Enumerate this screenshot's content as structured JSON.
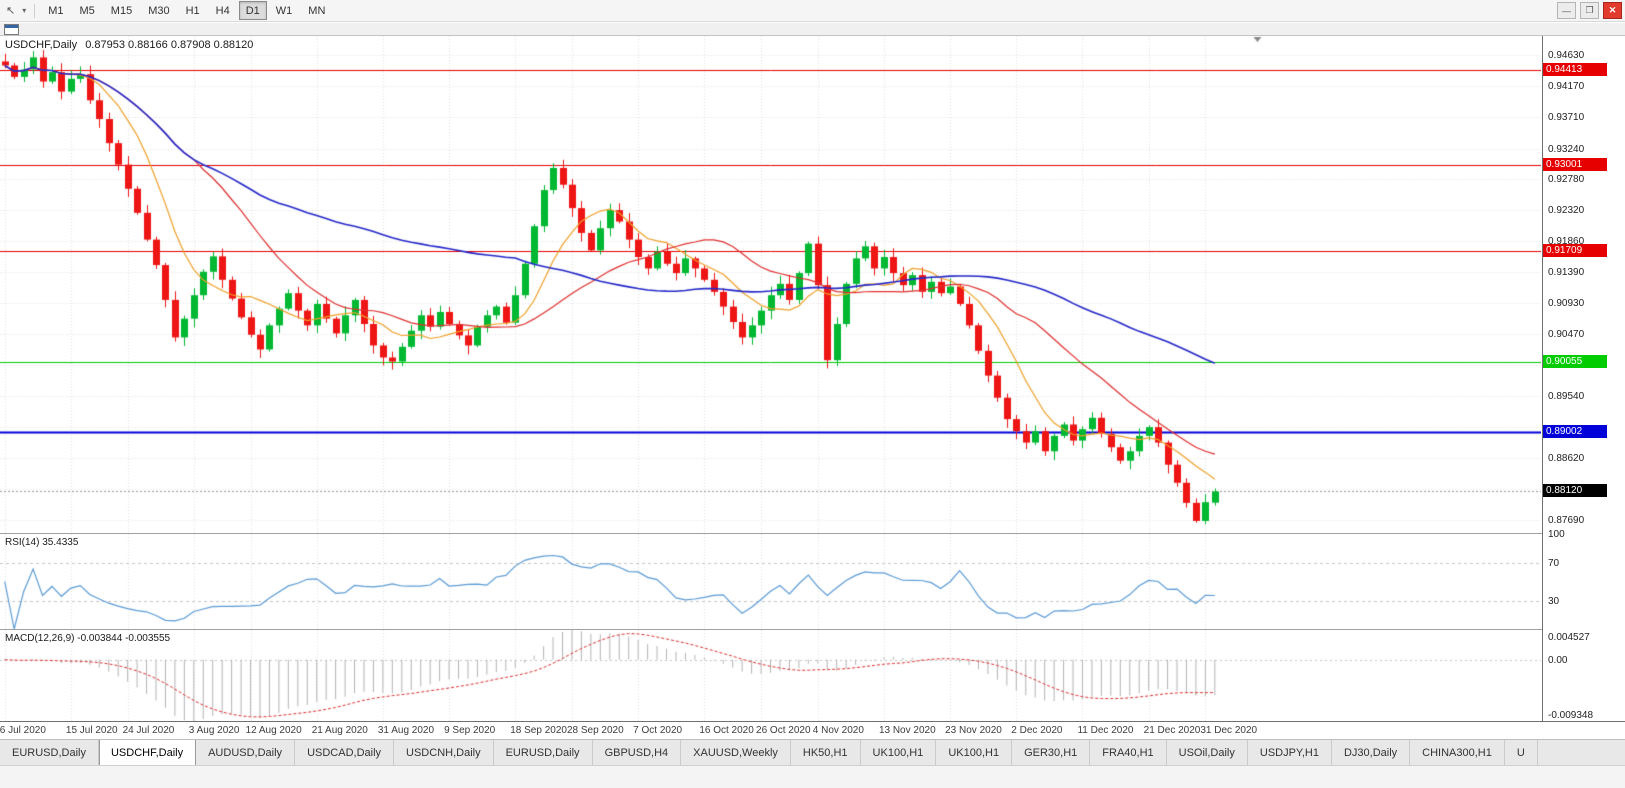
{
  "toolbar": {
    "timeframes": [
      "M1",
      "M5",
      "M15",
      "M30",
      "H1",
      "H4",
      "D1",
      "W1",
      "MN"
    ],
    "active_timeframe": "D1"
  },
  "icons": {
    "pointer": "↖",
    "dropdown_caret": "▾",
    "minimize": "—",
    "restore": "❐",
    "close": "✕"
  },
  "chart": {
    "symbol_title": "USDCHF,Daily",
    "ohlc_text": "0.87953 0.88166 0.87908 0.88120",
    "right_margin_slots": 34,
    "axis_ticks": [
      {
        "value": 0.9463,
        "label": "0.94630"
      },
      {
        "value": 0.9417,
        "label": "0.94170"
      },
      {
        "value": 0.9371,
        "label": "0.93710"
      },
      {
        "value": 0.9324,
        "label": "0.93240"
      },
      {
        "value": 0.9278,
        "label": "0.92780"
      },
      {
        "value": 0.9232,
        "label": "0.92320"
      },
      {
        "value": 0.9186,
        "label": "0.91860"
      },
      {
        "value": 0.9139,
        "label": "0.91390"
      },
      {
        "value": 0.9093,
        "label": "0.90930"
      },
      {
        "value": 0.9047,
        "label": "0.90470"
      },
      {
        "value": 0.8954,
        "label": "0.89540"
      },
      {
        "value": 0.8862,
        "label": "0.88620"
      },
      {
        "value": 0.8769,
        "label": "0.87690"
      }
    ],
    "grid_values": [
      0.9463,
      0.9417,
      0.9371,
      0.9324,
      0.9278,
      0.9232,
      0.9186,
      0.9139,
      0.9093,
      0.9047,
      0.9001,
      0.8954,
      0.8908,
      0.8862,
      0.8815,
      0.8769
    ],
    "hlines": [
      {
        "value": 0.94413,
        "label": "0.94413",
        "color": "#e60000",
        "width": 1
      },
      {
        "value": 0.93001,
        "label": "0.93001",
        "color": "#e60000",
        "width": 1
      },
      {
        "value": 0.91709,
        "label": "0.91709",
        "color": "#e60000",
        "width": 1
      },
      {
        "value": 0.90055,
        "label": "0.90055",
        "color": "#00cc00",
        "width": 1
      },
      {
        "value": 0.89002,
        "label": "0.89002",
        "color": "#0000d8",
        "width": 2
      }
    ],
    "current_price": {
      "value": 0.8812,
      "label": "0.88120",
      "badge_color": "#000000"
    }
  },
  "chart_data": {
    "type": "candlestick",
    "title": "USDCHF,Daily",
    "symbol": "USDCHF",
    "timeframe": "Daily",
    "ylim": [
      0.875,
      0.9492
    ],
    "up_color": "#00b832",
    "down_color": "#ee1515",
    "x_labels": [
      "6 Jul 2020",
      "15 Jul 2020",
      "24 Jul 2020",
      "3 Aug 2020",
      "12 Aug 2020",
      "21 Aug 2020",
      "31 Aug 2020",
      "9 Sep 2020",
      "18 Sep 2020",
      "28 Sep 2020",
      "7 Oct 2020",
      "16 Oct 2020",
      "26 Oct 2020",
      "4 Nov 2020",
      "13 Nov 2020",
      "23 Nov 2020",
      "2 Dec 2020",
      "11 Dec 2020",
      "21 Dec 2020",
      "31 Dec 2020"
    ],
    "x_label_indices": [
      0,
      7,
      13,
      20,
      26,
      33,
      40,
      47,
      54,
      60,
      67,
      74,
      80,
      86,
      93,
      100,
      107,
      114,
      121,
      127
    ],
    "closes": [
      0.9448,
      0.9431,
      0.9442,
      0.946,
      0.9424,
      0.9438,
      0.9409,
      0.9428,
      0.9435,
      0.9396,
      0.9368,
      0.9332,
      0.93,
      0.9264,
      0.9228,
      0.9188,
      0.915,
      0.9098,
      0.9042,
      0.907,
      0.9105,
      0.914,
      0.9163,
      0.9128,
      0.91,
      0.9072,
      0.9046,
      0.9024,
      0.906,
      0.9085,
      0.9108,
      0.9082,
      0.906,
      0.9092,
      0.907,
      0.9048,
      0.9075,
      0.9098,
      0.9062,
      0.903,
      0.9012,
      0.9006,
      0.9028,
      0.9052,
      0.9075,
      0.9058,
      0.908,
      0.9062,
      0.9045,
      0.903,
      0.9058,
      0.9075,
      0.9088,
      0.9064,
      0.9105,
      0.9152,
      0.9208,
      0.9262,
      0.9295,
      0.927,
      0.9235,
      0.9198,
      0.9172,
      0.9205,
      0.9232,
      0.9215,
      0.9188,
      0.9162,
      0.9145,
      0.917,
      0.9152,
      0.9138,
      0.916,
      0.9145,
      0.9128,
      0.911,
      0.9088,
      0.9065,
      0.9042,
      0.906,
      0.9082,
      0.9105,
      0.9122,
      0.9098,
      0.9138,
      0.9182,
      0.912,
      0.9008,
      0.9062,
      0.9122,
      0.916,
      0.9178,
      0.9145,
      0.9162,
      0.9138,
      0.912,
      0.9135,
      0.911,
      0.9125,
      0.9108,
      0.9118,
      0.9092,
      0.906,
      0.9022,
      0.8985,
      0.8952,
      0.892,
      0.8902,
      0.8885,
      0.8902,
      0.8872,
      0.8895,
      0.8912,
      0.8888,
      0.8905,
      0.8922,
      0.8898,
      0.8878,
      0.8858,
      0.8872,
      0.8895,
      0.8908,
      0.8885,
      0.8852,
      0.8825,
      0.8795,
      0.8768,
      0.8796,
      0.8812
    ],
    "last_candle": {
      "open": 0.87953,
      "high": 0.88166,
      "low": 0.87908,
      "close": 0.8812
    },
    "moving_averages": [
      {
        "name": "fast",
        "period": 8,
        "color": "#f0a028"
      },
      {
        "name": "medium",
        "period": 21,
        "color": "#e03030"
      },
      {
        "name": "slow",
        "period": 55,
        "color": "#2428c8"
      }
    ]
  },
  "rsi_panel": {
    "label": "RSI(14) 35.4335",
    "period": 14,
    "current_value": 35.4335,
    "levels": [
      30,
      70
    ],
    "axis_values": [
      100,
      70,
      30
    ],
    "axis_labels": [
      "100",
      "70",
      "30"
    ],
    "line_color": "#5b9bd5"
  },
  "macd_panel": {
    "label": "MACD(12,26,9) -0.003844 -0.003555",
    "fast": 12,
    "slow": 26,
    "signal": 9,
    "macd_value": -0.003844,
    "signal_value": -0.003555,
    "axis_max": 0.004527,
    "axis_min": -0.009348,
    "axis_labels": [
      "0.004527",
      "0.00",
      "-0.009348"
    ],
    "histogram_color": "#b4b4b4",
    "signal_color": "#e03030"
  },
  "tabs": {
    "items": [
      "EURUSD,Daily",
      "USDCHF,Daily",
      "AUDUSD,Daily",
      "USDCAD,Daily",
      "USDCNH,Daily",
      "EURUSD,Daily",
      "GBPUSD,H4",
      "XAUUSD,Weekly",
      "HK50,H1",
      "UK100,H1",
      "UK100,H1",
      "GER30,H1",
      "FRA40,H1",
      "USOil,Daily",
      "USDJPY,H1",
      "DJ30,Daily",
      "CHINA300,H1",
      "U"
    ],
    "active_index": 1
  }
}
